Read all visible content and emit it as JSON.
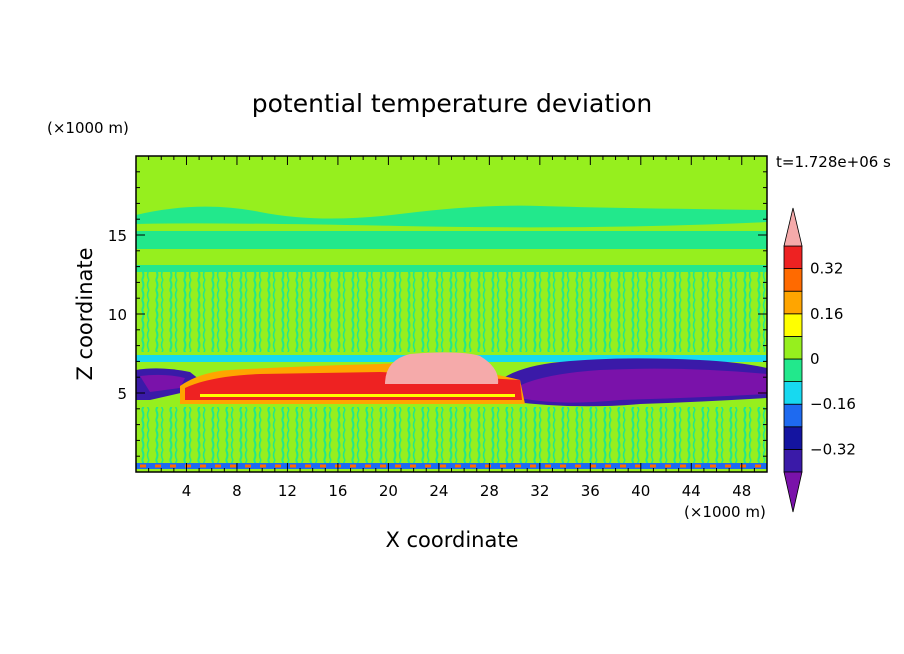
{
  "chart_data": {
    "type": "heatmap",
    "title": "potential temperature deviation",
    "xlabel": "X coordinate",
    "ylabel": "Z coordinate",
    "x_unit": "(×1000 m)",
    "y_unit": "(×1000 m)",
    "time_label": "t=1.728e+06 s",
    "xlim": [
      0,
      50
    ],
    "ylim": [
      0,
      20
    ],
    "xticks": [
      4,
      8,
      12,
      16,
      20,
      24,
      28,
      32,
      36,
      40,
      44,
      48
    ],
    "yticks": [
      5,
      10,
      15
    ],
    "colorbar": {
      "labels": [
        "0.32",
        "0.16",
        "0",
        "-0.16",
        "-0.32"
      ],
      "label_values": [
        0.32,
        0.16,
        0,
        -0.16,
        -0.32
      ],
      "levels": [
        -0.4,
        -0.32,
        -0.24,
        -0.16,
        -0.08,
        0,
        0.08,
        0.16,
        0.24,
        0.32,
        0.4
      ],
      "colors": [
        "#7A12AA",
        "#3A1AA8",
        "#1414A0",
        "#1E6AF0",
        "#17D9F0",
        "#22E88C",
        "#96EF1E",
        "#FFFF00",
        "#FFA500",
        "#FF6A00",
        "#EE2222",
        "#F5AAAA"
      ],
      "extend": "both"
    },
    "regions": [
      {
        "name": "background",
        "value": 0.04
      },
      {
        "name": "upper-band",
        "x": [
          0,
          50
        ],
        "z": [
          13.8,
          15.2
        ],
        "value": -0.02
      },
      {
        "name": "mid-band",
        "x": [
          0,
          50
        ],
        "z": [
          10.8,
          12.0
        ],
        "value": -0.02
      },
      {
        "name": "lower-layer",
        "x": [
          0,
          50
        ],
        "z": [
          0.3,
          3.8
        ],
        "value": 0.0
      },
      {
        "name": "warm-core",
        "x": [
          4.5,
          30.5
        ],
        "z": [
          4.5,
          5.7
        ],
        "value": 0.36
      },
      {
        "name": "warm-top",
        "x": [
          19.5,
          29
        ],
        "z": [
          5.5,
          7.6
        ],
        "value": 0.42
      },
      {
        "name": "cold-right",
        "x": [
          29,
          50
        ],
        "z": [
          4.1,
          7.0
        ],
        "value": -0.4
      },
      {
        "name": "cold-left",
        "x": [
          0,
          5
        ],
        "z": [
          4.5,
          6.4
        ],
        "value": -0.32
      }
    ]
  }
}
